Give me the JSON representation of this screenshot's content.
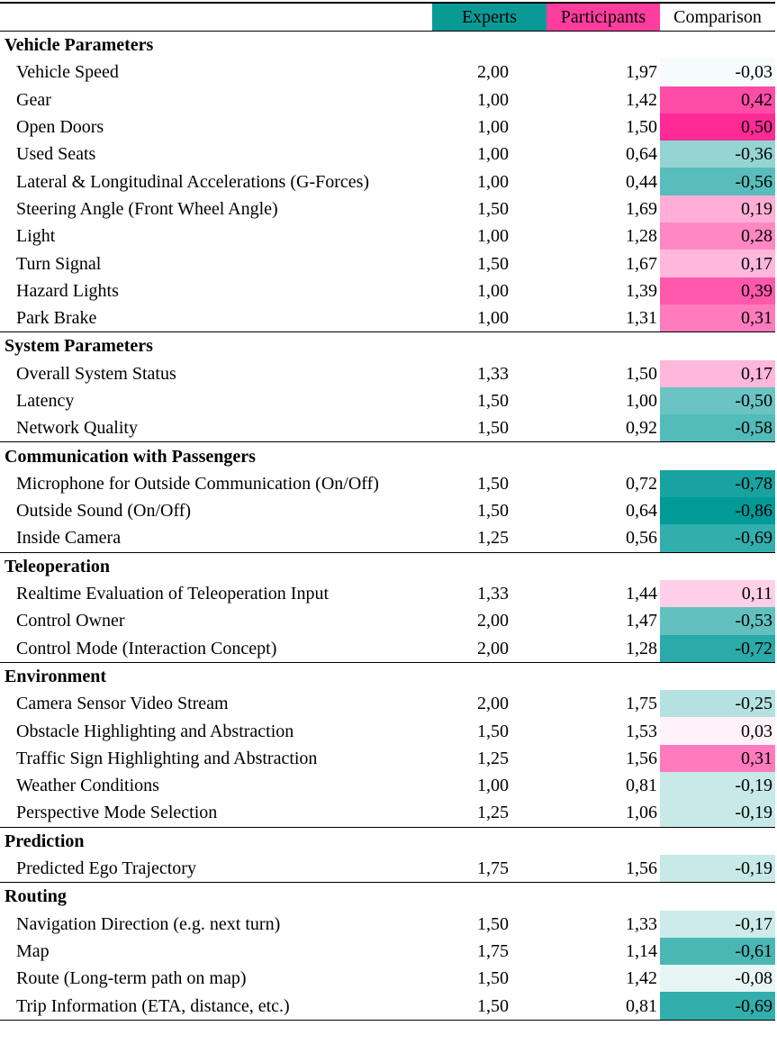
{
  "header": {
    "experts": "Experts",
    "participants": "Participants",
    "comparison": "Comparison",
    "experts_color": "#0a9a96",
    "participants_color": "#ff3d9e"
  },
  "sections": [
    {
      "title": "Vehicle Parameters",
      "rows": [
        {
          "label": "Vehicle Speed",
          "experts": "2,00",
          "participants": "1,97",
          "comparison": "-0,03",
          "color": "#f6fbfb"
        },
        {
          "label": "Gear",
          "experts": "1,00",
          "participants": "1,42",
          "comparison": "0,42",
          "color": "#ff4ca6"
        },
        {
          "label": "Open Doors",
          "experts": "1,00",
          "participants": "1,50",
          "comparison": "0,50",
          "color": "#ff2a95"
        },
        {
          "label": "Used Seats",
          "experts": "1,00",
          "participants": "0,64",
          "comparison": "-0,36",
          "color": "#94d5d3"
        },
        {
          "label": "Lateral & Longitudinal Accelerations (G-Forces)",
          "experts": "1,00",
          "participants": "0,44",
          "comparison": "-0,56",
          "color": "#59bdbb"
        },
        {
          "label": "Steering Angle (Front Wheel Angle)",
          "experts": "1,50",
          "participants": "1,69",
          "comparison": "0,19",
          "color": "#ffaed7"
        },
        {
          "label": "Light",
          "experts": "1,00",
          "participants": "1,28",
          "comparison": "0,28",
          "color": "#ff88c4"
        },
        {
          "label": "Turn Signal",
          "experts": "1,50",
          "participants": "1,67",
          "comparison": "0,17",
          "color": "#ffb7db"
        },
        {
          "label": "Hazard Lights",
          "experts": "1,00",
          "participants": "1,39",
          "comparison": "0,39",
          "color": "#ff59ac"
        },
        {
          "label": "Park Brake",
          "experts": "1,00",
          "participants": "1,31",
          "comparison": "0,31",
          "color": "#ff7bbd"
        }
      ]
    },
    {
      "title": "System Parameters",
      "rows": [
        {
          "label": "Overall System Status",
          "experts": "1,33",
          "participants": "1,50",
          "comparison": "0,17",
          "color": "#ffb7db"
        },
        {
          "label": "Latency",
          "experts": "1,50",
          "participants": "1,00",
          "comparison": "-0,50",
          "color": "#6bc4c3"
        },
        {
          "label": "Network Quality",
          "experts": "1,50",
          "participants": "0,92",
          "comparison": "-0,58",
          "color": "#53bbb9"
        }
      ]
    },
    {
      "title": "Communication with Passengers",
      "rows": [
        {
          "label": "Microphone for Outside Communication (On/Off)",
          "experts": "1,50",
          "participants": "0,72",
          "comparison": "-0,78",
          "color": "#18a3a1"
        },
        {
          "label": "Outside Sound (On/Off)",
          "experts": "1,50",
          "participants": "0,64",
          "comparison": "-0,86",
          "color": "#009a97"
        },
        {
          "label": "Inside Camera",
          "experts": "1,25",
          "participants": "0,56",
          "comparison": "-0,69",
          "color": "#32aeac"
        }
      ]
    },
    {
      "title": "Teleoperation",
      "rows": [
        {
          "label": "Realtime Evaluation of Teleoperation Input",
          "experts": "1,33",
          "participants": "1,44",
          "comparison": "0,11",
          "color": "#ffd0e8"
        },
        {
          "label": "Control Owner",
          "experts": "2,00",
          "participants": "1,47",
          "comparison": "-0,53",
          "color": "#62c1bf"
        },
        {
          "label": "Control Mode (Interaction Concept)",
          "experts": "2,00",
          "participants": "1,28",
          "comparison": "-0,72",
          "color": "#2aaaa8"
        }
      ]
    },
    {
      "title": "Environment",
      "rows": [
        {
          "label": "Camera Sensor Video Stream",
          "experts": "2,00",
          "participants": "1,75",
          "comparison": "-0,25",
          "color": "#b5e2e1"
        },
        {
          "label": "Obstacle Highlighting and Abstraction",
          "experts": "1,50",
          "participants": "1,53",
          "comparison": "0,03",
          "color": "#fff2f9"
        },
        {
          "label": "Traffic Sign Highlighting and Abstraction",
          "experts": "1,25",
          "participants": "1,56",
          "comparison": "0,31",
          "color": "#ff7bbd"
        },
        {
          "label": "Weather Conditions",
          "experts": "1,00",
          "participants": "0,81",
          "comparison": "-0,19",
          "color": "#c7e9e8"
        },
        {
          "label": "Perspective Mode Selection",
          "experts": "1,25",
          "participants": "1,06",
          "comparison": "-0,19",
          "color": "#c7e9e8"
        }
      ]
    },
    {
      "title": "Prediction",
      "rows": [
        {
          "label": "Predicted Ego Trajectory",
          "experts": "1,75",
          "participants": "1,56",
          "comparison": "-0,19",
          "color": "#c7e9e8"
        }
      ]
    },
    {
      "title": "Routing",
      "rows": [
        {
          "label": "Navigation Direction (e.g. next turn)",
          "experts": "1,50",
          "participants": "1,33",
          "comparison": "-0,17",
          "color": "#cdebea"
        },
        {
          "label": "Map",
          "experts": "1,75",
          "participants": "1,14",
          "comparison": "-0,61",
          "color": "#4ab7b5"
        },
        {
          "label": "Route (Long-term path on map)",
          "experts": "1,50",
          "participants": "1,42",
          "comparison": "-0,08",
          "color": "#e7f6f5"
        },
        {
          "label": "Trip Information (ETA, distance, etc.)",
          "experts": "1,50",
          "participants": "0,81",
          "comparison": "-0,69",
          "color": "#32aeac"
        }
      ]
    }
  ]
}
